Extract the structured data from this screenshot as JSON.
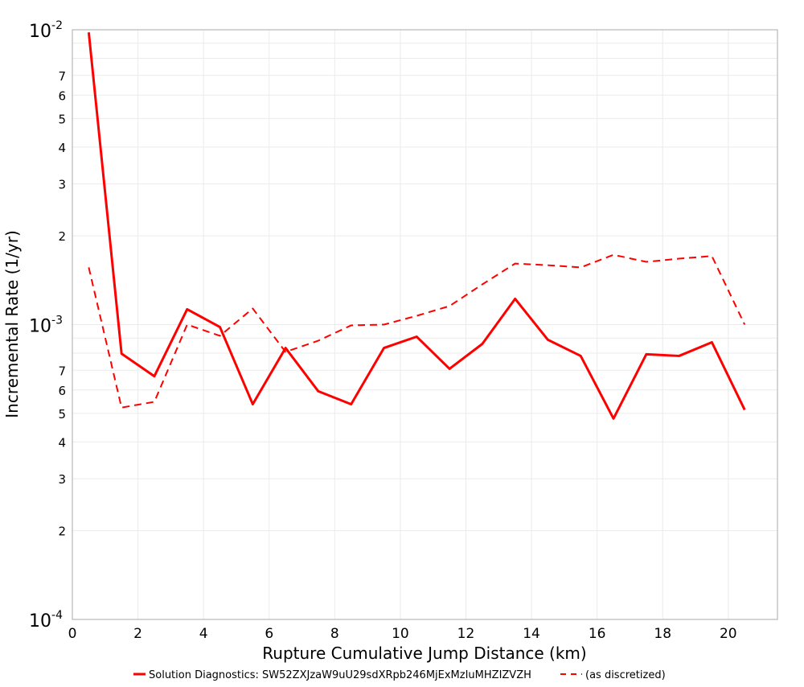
{
  "chart_data": {
    "type": "line",
    "title": "",
    "xlabel": "Rupture Cumulative Jump Distance (km)",
    "ylabel": "Incremental Rate (1/yr)",
    "xlim": [
      0,
      21.5
    ],
    "ylim": [
      0.0001,
      0.01
    ],
    "yscale": "log",
    "grid": true,
    "legend_position": "bottom",
    "x_ticks": [
      "0",
      "2",
      "4",
      "6",
      "8",
      "10",
      "12",
      "14",
      "16",
      "18",
      "20"
    ],
    "y_major_ticks": [
      {
        "base": "10",
        "exp": "-4"
      },
      {
        "base": "10",
        "exp": "-3"
      },
      {
        "base": "10",
        "exp": "-2"
      }
    ],
    "y_minor_ticks": [
      "2",
      "3",
      "4",
      "5",
      "6",
      "7"
    ],
    "x": [
      0.5,
      1.5,
      2.5,
      3.5,
      4.5,
      5.5,
      6.5,
      7.5,
      8.5,
      9.5,
      10.5,
      11.5,
      12.5,
      13.5,
      14.5,
      15.5,
      16.5,
      17.5,
      18.5,
      19.5,
      20.5
    ],
    "series": [
      {
        "name": "Solution Diagnostics: SW52ZXJzaW9uU29sdXRpb246MjExMzIuMHZIZVZH",
        "color": "#ff0000",
        "style": "solid",
        "values": [
          0.0098,
          0.000797,
          0.000668,
          0.001127,
          0.000981,
          0.000537,
          0.000833,
          0.000594,
          0.000537,
          0.000833,
          0.00091,
          0.000708,
          0.00086,
          0.001223,
          0.000888,
          0.000783,
          0.00048,
          0.000793,
          0.000783,
          0.000871,
          0.000514
        ]
      },
      {
        "name": "(as discretized)",
        "color": "#ff0000",
        "style": "dashed",
        "values": [
          0.001563,
          0.000523,
          0.000547,
          0.001,
          0.000916,
          0.001134,
          0.000808,
          0.000882,
          0.000994,
          0.001,
          0.001071,
          0.001156,
          0.001369,
          0.001611,
          0.00159,
          0.001563,
          0.001725,
          0.001632,
          0.001674,
          0.001708,
          0.001
        ]
      }
    ]
  }
}
